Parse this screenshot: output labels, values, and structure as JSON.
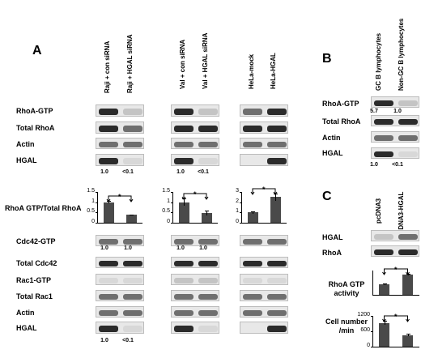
{
  "panels": {
    "A": {
      "letter": "A",
      "columns": {
        "g1": [
          "Raji + con siRNA",
          "Raji + HGAL siRNA"
        ],
        "g2": [
          "Val + con siRNA",
          "Val + HGAL siRNA"
        ],
        "g3": [
          "HeLa-mock",
          "HeLa-HGAL"
        ]
      },
      "rows_top": [
        "RhoA-GTP",
        "Total RhoA",
        "Actin",
        "HGAL"
      ],
      "values_top": {
        "g1": [
          "1.0",
          "<0.1"
        ],
        "g2": [
          "1.0",
          "<0.1"
        ]
      },
      "ratio_label": "RhoA GTP/Total RhoA",
      "rows_bottom": [
        "Cdc42-GTP",
        "Total Cdc42",
        "Rac1-GTP",
        "Total Rac1",
        "Actin",
        "HGAL"
      ],
      "values_cdc42": {
        "g1": [
          "1.0",
          "1.0"
        ],
        "g2": [
          "1.0",
          "1.0"
        ]
      },
      "values_hgal_bottom": {
        "g1": [
          "1.0",
          "<0.1"
        ]
      }
    },
    "B": {
      "letter": "B",
      "columns": [
        "GC  B  lymphocytes",
        "Non-GC  B  lymphocytes"
      ],
      "rows": [
        "RhoA-GTP",
        "Total RhoA",
        "Actin",
        "HGAL"
      ],
      "values_rhoa": [
        "5.7",
        "1.0"
      ],
      "values_hgal": [
        "1.0",
        "<0.1"
      ]
    },
    "C": {
      "letter": "C",
      "columns": [
        "pcDNA3",
        "pcDNA3-HGAL"
      ],
      "rows": [
        "HGAL",
        "RhoA"
      ],
      "chart1_label": "RhoA GTP\nactivity",
      "chart2_label": "Cell number\n/min"
    }
  },
  "significance_mark": "*",
  "chart_data": [
    {
      "type": "bar",
      "categories": [
        "Raji + con siRNA",
        "Raji + HGAL siRNA"
      ],
      "values": [
        1.0,
        0.38
      ],
      "errors": [
        0.06,
        0.03
      ],
      "ylim": [
        0,
        1.5
      ],
      "yticks": [
        "0",
        "0.5",
        "1",
        "1.5"
      ]
    },
    {
      "type": "bar",
      "categories": [
        "Val + con siRNA",
        "Val + HGAL siRNA"
      ],
      "values": [
        1.0,
        0.47
      ],
      "errors": [
        0.17,
        0.12
      ],
      "ylim": [
        0,
        1.5
      ],
      "yticks": [
        "0",
        "0.5",
        "1",
        "1.5"
      ]
    },
    {
      "type": "bar",
      "categories": [
        "HeLa-mock",
        "HeLa-HGAL"
      ],
      "values": [
        1.0,
        2.5
      ],
      "errors": [
        0.12,
        0.38
      ],
      "ylim": [
        0,
        3
      ],
      "yticks": [
        "0",
        "1",
        "2",
        "3"
      ]
    },
    {
      "type": "bar",
      "categories": [
        "pcDNA3",
        "pcDNA3-HGAL"
      ],
      "values": [
        0.13,
        0.25
      ],
      "errors": [
        0.01,
        0.01
      ],
      "ylim": [
        0,
        0.3
      ],
      "yticks": []
    },
    {
      "type": "bar",
      "categories": [
        "pcDNA3",
        "pcDNA3-HGAL"
      ],
      "values": [
        930,
        450
      ],
      "errors": [
        70,
        40
      ],
      "ylim": [
        0,
        1200
      ],
      "yticks": [
        "0",
        "600",
        "1200"
      ]
    }
  ]
}
